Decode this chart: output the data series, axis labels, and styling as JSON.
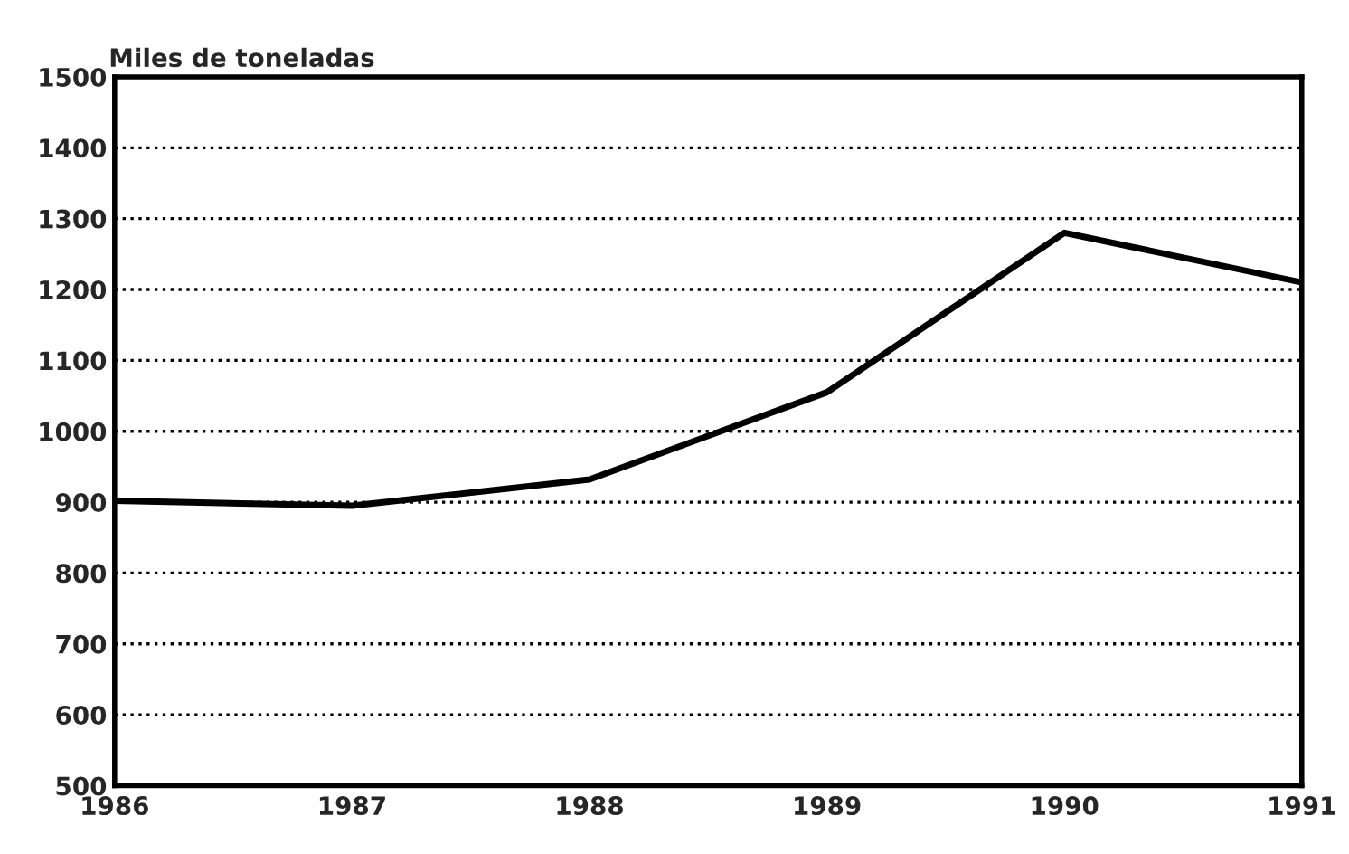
{
  "chart_data": {
    "type": "line",
    "ylabel": "Miles de toneladas",
    "x": [
      1986,
      1987,
      1988,
      1989,
      1990,
      1991
    ],
    "series": [
      {
        "color": "#000000",
        "values": [
          902,
          895,
          932,
          1055,
          1280,
          1210
        ]
      }
    ],
    "xlim": [
      1986,
      1991
    ],
    "xticks": [
      1986,
      1987,
      1988,
      1989,
      1990,
      1991
    ],
    "ylim": [
      500,
      1500
    ],
    "yticks": [
      500,
      600,
      700,
      800,
      900,
      1000,
      1100,
      1200,
      1300,
      1400,
      1500
    ],
    "grid": "y",
    "marker": "none",
    "line_style": "solid"
  }
}
